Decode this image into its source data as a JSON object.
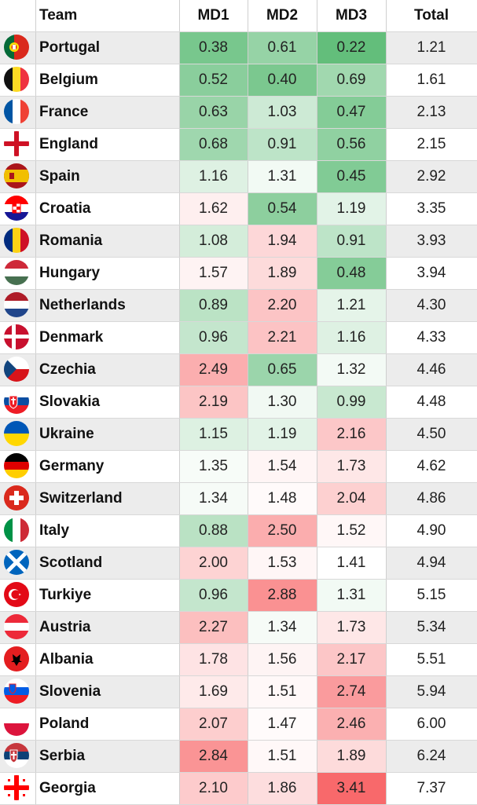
{
  "chart_data": {
    "type": "table",
    "columns": [
      "Team",
      "MD1",
      "MD2",
      "MD3",
      "Total"
    ],
    "color_scale": {
      "low": "#63be7b",
      "mid": "#ffffff",
      "high": "#f8696b"
    },
    "rows": [
      {
        "team": "Portugal",
        "flag": "portugal",
        "md1": "0.38",
        "md2": "0.61",
        "md3": "0.22",
        "total": "1.21"
      },
      {
        "team": "Belgium",
        "flag": "belgium",
        "md1": "0.52",
        "md2": "0.40",
        "md3": "0.69",
        "total": "1.61"
      },
      {
        "team": "France",
        "flag": "france",
        "md1": "0.63",
        "md2": "1.03",
        "md3": "0.47",
        "total": "2.13"
      },
      {
        "team": "England",
        "flag": "england",
        "md1": "0.68",
        "md2": "0.91",
        "md3": "0.56",
        "total": "2.15"
      },
      {
        "team": "Spain",
        "flag": "spain",
        "md1": "1.16",
        "md2": "1.31",
        "md3": "0.45",
        "total": "2.92"
      },
      {
        "team": "Croatia",
        "flag": "croatia",
        "md1": "1.62",
        "md2": "0.54",
        "md3": "1.19",
        "total": "3.35"
      },
      {
        "team": "Romania",
        "flag": "romania",
        "md1": "1.08",
        "md2": "1.94",
        "md3": "0.91",
        "total": "3.93"
      },
      {
        "team": "Hungary",
        "flag": "hungary",
        "md1": "1.57",
        "md2": "1.89",
        "md3": "0.48",
        "total": "3.94"
      },
      {
        "team": "Netherlands",
        "flag": "netherlands",
        "md1": "0.89",
        "md2": "2.20",
        "md3": "1.21",
        "total": "4.30"
      },
      {
        "team": "Denmark",
        "flag": "denmark",
        "md1": "0.96",
        "md2": "2.21",
        "md3": "1.16",
        "total": "4.33"
      },
      {
        "team": "Czechia",
        "flag": "czechia",
        "md1": "2.49",
        "md2": "0.65",
        "md3": "1.32",
        "total": "4.46"
      },
      {
        "team": "Slovakia",
        "flag": "slovakia",
        "md1": "2.19",
        "md2": "1.30",
        "md3": "0.99",
        "total": "4.48"
      },
      {
        "team": "Ukraine",
        "flag": "ukraine",
        "md1": "1.15",
        "md2": "1.19",
        "md3": "2.16",
        "total": "4.50"
      },
      {
        "team": "Germany",
        "flag": "germany",
        "md1": "1.35",
        "md2": "1.54",
        "md3": "1.73",
        "total": "4.62"
      },
      {
        "team": "Switzerland",
        "flag": "switzerland",
        "md1": "1.34",
        "md2": "1.48",
        "md3": "2.04",
        "total": "4.86"
      },
      {
        "team": "Italy",
        "flag": "italy",
        "md1": "0.88",
        "md2": "2.50",
        "md3": "1.52",
        "total": "4.90"
      },
      {
        "team": "Scotland",
        "flag": "scotland",
        "md1": "2.00",
        "md2": "1.53",
        "md3": "1.41",
        "total": "4.94"
      },
      {
        "team": "Turkiye",
        "flag": "turkiye",
        "md1": "0.96",
        "md2": "2.88",
        "md3": "1.31",
        "total": "5.15"
      },
      {
        "team": "Austria",
        "flag": "austria",
        "md1": "2.27",
        "md2": "1.34",
        "md3": "1.73",
        "total": "5.34"
      },
      {
        "team": "Albania",
        "flag": "albania",
        "md1": "1.78",
        "md2": "1.56",
        "md3": "2.17",
        "total": "5.51"
      },
      {
        "team": "Slovenia",
        "flag": "slovenia",
        "md1": "1.69",
        "md2": "1.51",
        "md3": "2.74",
        "total": "5.94"
      },
      {
        "team": "Poland",
        "flag": "poland",
        "md1": "2.07",
        "md2": "1.47",
        "md3": "2.46",
        "total": "6.00"
      },
      {
        "team": "Serbia",
        "flag": "serbia",
        "md1": "2.84",
        "md2": "1.51",
        "md3": "1.89",
        "total": "6.24"
      },
      {
        "team": "Georgia",
        "flag": "georgia",
        "md1": "2.10",
        "md2": "1.86",
        "md3": "3.41",
        "total": "7.37"
      }
    ]
  }
}
